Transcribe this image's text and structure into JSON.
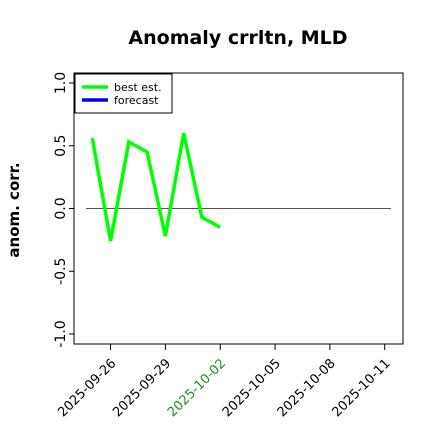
{
  "chart_data": {
    "type": "line",
    "title": "Anomaly crrltn, MLD",
    "ylabel": "anom. corr.",
    "xlabel": "",
    "ylim": [
      -1.0,
      1.0
    ],
    "xlim": [
      "2025-09-24",
      "2025-10-12"
    ],
    "yticks": [
      "-1.0",
      "-0.5",
      "0.0",
      "0.5",
      "1.0"
    ],
    "xticks": [
      {
        "date": "2025-09-26",
        "label": "2025-09-26",
        "color": "#000000"
      },
      {
        "date": "2025-09-29",
        "label": "2025-09-29",
        "color": "#000000"
      },
      {
        "date": "2025-10-02",
        "label": "2025-10-02",
        "color": "#228b22"
      },
      {
        "date": "2025-10-05",
        "label": "2025-10-05",
        "color": "#000000"
      },
      {
        "date": "2025-10-08",
        "label": "2025-10-08",
        "color": "#000000"
      },
      {
        "date": "2025-10-11",
        "label": "2025-10-11",
        "color": "#000000"
      }
    ],
    "reference_line": {
      "y": 0.0,
      "color": "#555555"
    },
    "legend": {
      "placement": "top-left"
    },
    "series": [
      {
        "name": "best est.",
        "color": "#00ff00",
        "x": [
          "2025-09-25",
          "2025-09-26",
          "2025-09-27",
          "2025-09-28",
          "2025-09-29",
          "2025-09-30",
          "2025-10-01",
          "2025-10-02"
        ],
        "y": [
          0.56,
          -0.26,
          0.53,
          0.45,
          -0.22,
          0.6,
          -0.07,
          -0.15
        ]
      },
      {
        "name": "forecast",
        "color": "#0000ff",
        "x": [],
        "y": []
      }
    ]
  }
}
